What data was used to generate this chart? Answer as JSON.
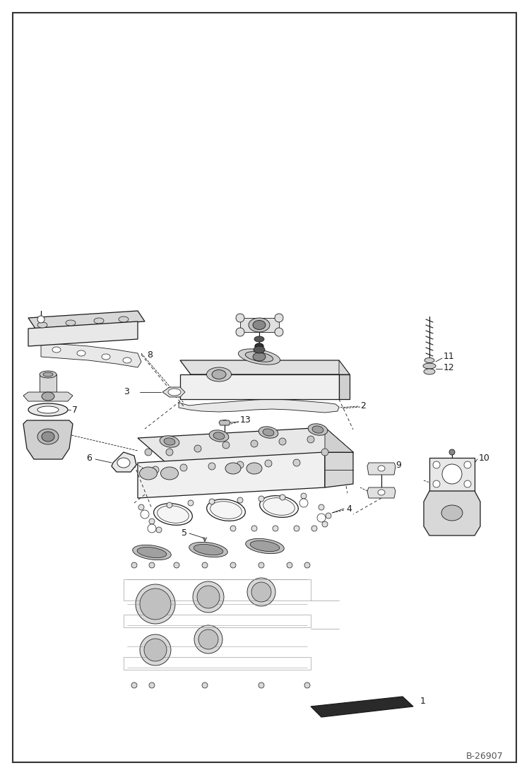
{
  "bg": "#ffffff",
  "lc": "#1a1a1a",
  "tc": "#1a1a1a",
  "fw": 7.49,
  "fh": 10.97,
  "dpi": 100,
  "watermark": "B-26907",
  "lw_thin": 0.6,
  "lw_med": 0.9,
  "lw_thick": 1.2,
  "label_fs": 9
}
